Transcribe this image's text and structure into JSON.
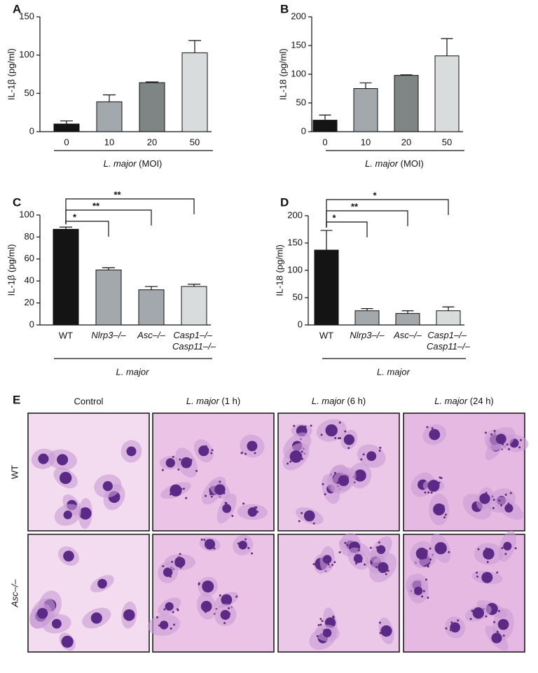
{
  "charts": [
    {
      "type": "bar",
      "label": "A",
      "ylabel": "IL-1β (pg/ml)",
      "categories": [
        "0",
        "10",
        "20",
        "50"
      ],
      "values": [
        10,
        39,
        64,
        103
      ],
      "errors": [
        4,
        9,
        1,
        16
      ],
      "colors": [
        "#141414",
        "#a3a8ad",
        "#7f8584",
        "#d9dcdc"
      ],
      "ylim": [
        0,
        150
      ],
      "yticks": [
        0,
        50,
        100,
        150
      ],
      "xlabel": "L. major (MOI)"
    },
    {
      "type": "bar",
      "label": "B",
      "ylabel": "IL-18 (pg/ml)",
      "categories": [
        "0",
        "10",
        "20",
        "50"
      ],
      "values": [
        20,
        75,
        98,
        132
      ],
      "errors": [
        9,
        10,
        1,
        30
      ],
      "colors": [
        "#141414",
        "#a3a8ad",
        "#7f8584",
        "#d9dcdc"
      ],
      "ylim": [
        0,
        200
      ],
      "yticks": [
        0,
        50,
        100,
        150,
        200
      ],
      "xlabel": "L. major (MOI)"
    },
    {
      "type": "bar",
      "label": "C",
      "ylabel": "IL-1β (pg/ml)",
      "categories": [
        "WT",
        "Nlrp3–/–",
        "Asc–/–",
        "Casp1–/– Casp11–/–"
      ],
      "values": [
        87,
        50,
        32,
        35
      ],
      "errors": [
        2,
        2,
        3,
        2
      ],
      "colors": [
        "#141414",
        "#a3a8ad",
        "#a3a8ad",
        "#d9dcdc"
      ],
      "ylim": [
        0,
        100
      ],
      "yticks": [
        0,
        20,
        40,
        60,
        80,
        100
      ],
      "xlabel": "L. major",
      "annotations": [
        {
          "from": 0,
          "to": 1,
          "text": "*"
        },
        {
          "from": 0,
          "to": 2,
          "text": "**"
        },
        {
          "from": 0,
          "to": 3,
          "text": "**"
        }
      ]
    },
    {
      "type": "bar",
      "label": "D",
      "ylabel": "IL-18 (pg/ml)",
      "categories": [
        "WT",
        "Nlrp3–/–",
        "Asc–/–",
        "Casp1–/– Casp11–/–"
      ],
      "values": [
        137,
        26,
        21,
        26
      ],
      "errors": [
        36,
        4,
        5,
        7
      ],
      "colors": [
        "#141414",
        "#a3a8ad",
        "#a3a8ad",
        "#d9dcdc"
      ],
      "ylim": [
        0,
        200
      ],
      "yticks": [
        0,
        50,
        100,
        150,
        200
      ],
      "xlabel": "L. major",
      "annotations": [
        {
          "from": 0,
          "to": 1,
          "text": "*"
        },
        {
          "from": 0,
          "to": 2,
          "text": "**"
        },
        {
          "from": 0,
          "to": 3,
          "text": "*"
        }
      ]
    }
  ],
  "panel_e": {
    "label": "E",
    "columns": [
      "Control",
      "L. major (1 h)",
      "L. major (6 h)",
      "L. major (24 h)"
    ],
    "rows": [
      "WT",
      "Asc–/–"
    ]
  }
}
